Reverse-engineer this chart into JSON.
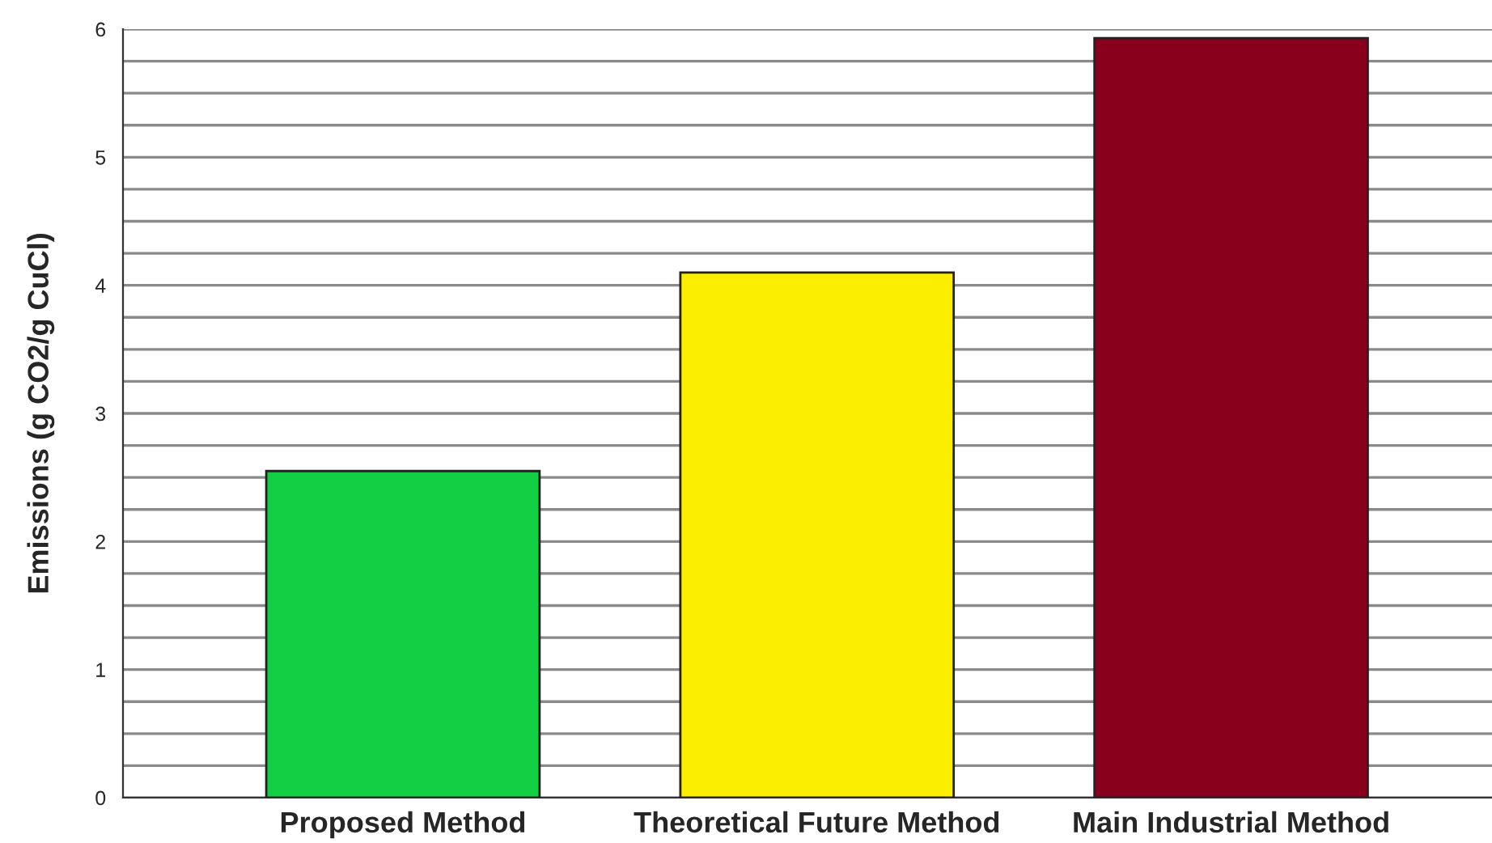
{
  "chart_data": {
    "type": "bar",
    "ylabel": "Emissions (g CO2/g CuCl)",
    "categories": [
      "Proposed Method",
      "Theoretical Future Method",
      "Main Industrial Method"
    ],
    "values": [
      2.55,
      4.1,
      5.93
    ],
    "colors": [
      "#12cf43",
      "#fcee00",
      "#89001c"
    ],
    "ylim": [
      0,
      6
    ],
    "yticks": [
      0,
      {
        "value": 0.25,
        "label": null
      },
      {
        "value": 0.5,
        "label": null
      },
      {
        "value": 0.75,
        "label": null
      },
      1,
      {
        "value": 1.25,
        "label": null
      },
      {
        "value": 1.5,
        "label": null
      },
      {
        "value": 1.75,
        "label": null
      },
      2,
      {
        "value": 2.25,
        "label": null
      },
      {
        "value": 2.5,
        "label": null
      },
      {
        "value": 2.75,
        "label": null
      },
      3,
      {
        "value": 3.25,
        "label": null
      },
      {
        "value": 3.5,
        "label": null
      },
      {
        "value": 3.75,
        "label": null
      },
      4,
      {
        "value": 4.25,
        "label": null
      },
      {
        "value": 4.5,
        "label": null
      },
      {
        "value": 4.75,
        "label": null
      },
      5,
      {
        "value": 5.25,
        "label": null
      },
      {
        "value": 5.5,
        "label": null
      },
      {
        "value": 5.75,
        "label": null
      },
      6
    ],
    "grid": "y"
  }
}
